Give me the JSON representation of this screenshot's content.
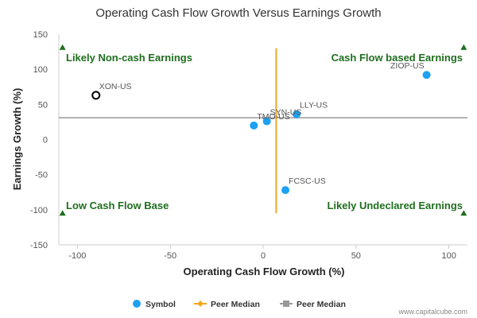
{
  "chart_data": {
    "type": "scatter",
    "title": "Operating Cash Flow Growth Versus Earnings Growth",
    "xlabel": "Operating Cash Flow Growth (%)",
    "ylabel": "Earnings Growth (%)",
    "xlim": [
      -110,
      110
    ],
    "ylim": [
      -150,
      150
    ],
    "x_ticks": [
      -100,
      -50,
      0,
      50,
      100
    ],
    "y_ticks": [
      150,
      100,
      50,
      0,
      -50,
      -100,
      -150
    ],
    "grid": false,
    "points": [
      {
        "label": "XON-US",
        "x": -90,
        "y": 63,
        "highlight": true
      },
      {
        "label": "ZIOP-US",
        "x": 88,
        "y": 92,
        "highlight": false
      },
      {
        "label": "LLY-US",
        "x": 18,
        "y": 36,
        "highlight": false
      },
      {
        "label": "SYN-US",
        "x": 2,
        "y": 26,
        "highlight": false
      },
      {
        "label": "TMO-US",
        "x": -5,
        "y": 20,
        "highlight": false
      },
      {
        "label": "FCSC-US",
        "x": 12,
        "y": -72,
        "highlight": false
      }
    ],
    "peer_median_x": 7,
    "peer_median_y": 31,
    "quadrants": {
      "top_left": "Likely Non-cash Earnings",
      "top_right": "Cash Flow based Earnings",
      "bottom_left": "Low Cash Flow Base",
      "bottom_right": "Likely Undeclared Earnings"
    },
    "legend": {
      "placement": "bottom",
      "entries": [
        {
          "label": "Symbol",
          "color": "#1da1f2",
          "marker": "circle"
        },
        {
          "label": "Peer Median",
          "color": "#f5a623",
          "marker": "line-diamond"
        },
        {
          "label": "Peer Median",
          "color": "#999999",
          "marker": "line-square"
        }
      ]
    },
    "colors": {
      "point": "#1da1f2",
      "highlight": "#000000",
      "median_vertical": "#f5a623",
      "median_horizontal": "#999999",
      "quadrant_text": "#1f6e1f",
      "marker": "#1f6e1f"
    }
  },
  "credit": "www.capitalcube.com"
}
